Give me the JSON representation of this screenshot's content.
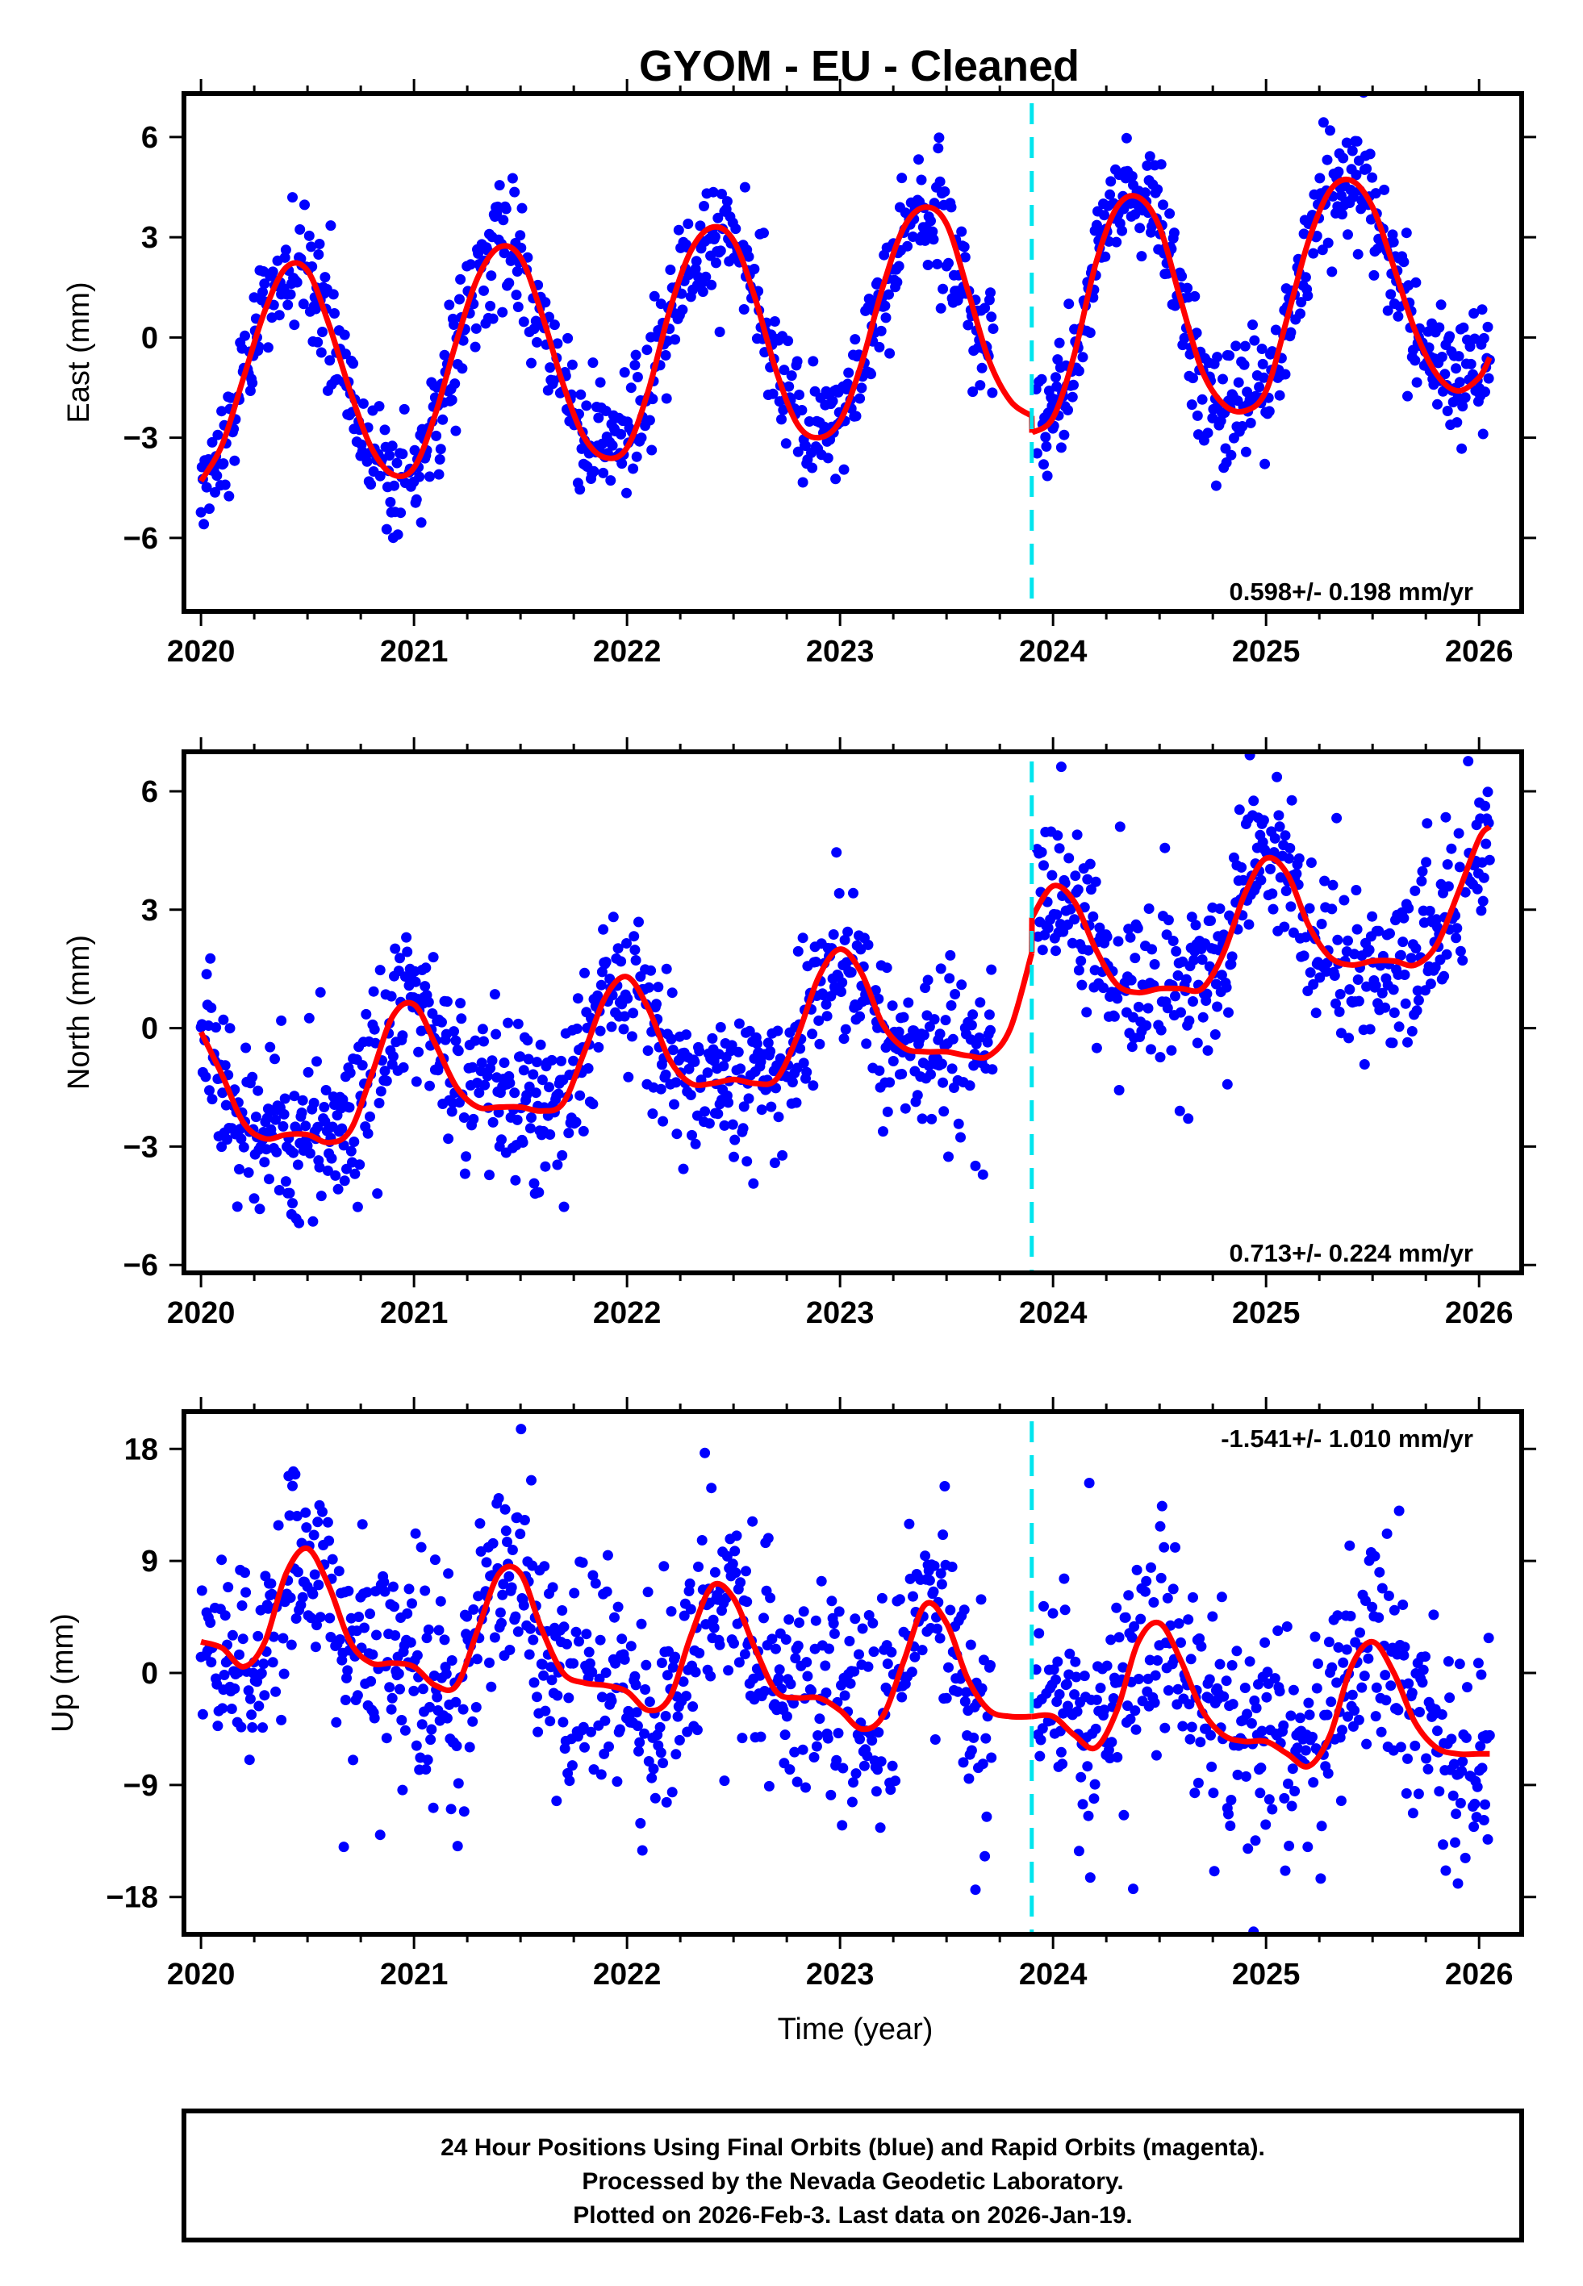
{
  "chart_data": {
    "type": "scatter",
    "title": "GYOM  - EU - Cleaned",
    "xlabel": "Time (year)",
    "xlim": [
      2019.92,
      2026.2
    ],
    "x_ticks": [
      2020,
      2021,
      2022,
      2023,
      2024,
      2025,
      2026
    ],
    "x_tick_labels": [
      "2020",
      "2021",
      "2022",
      "2023",
      "2024",
      "2025",
      "2026"
    ],
    "equipment_change_epoch": 2023.9,
    "data_gaps": [
      [
        2023.72,
        2023.92
      ]
    ],
    "last_data_epoch": 2026.05,
    "point_color": "#0000ff",
    "model_color": "#ff0000",
    "break_line_color": "#00e5ee",
    "grid": false,
    "panels": [
      {
        "name": "East",
        "ylabel": "East (mm)",
        "ylim": [
          -8.2,
          7.3
        ],
        "y_ticks": [
          -6,
          -3,
          0,
          3,
          6
        ],
        "y_tick_labels": [
          "−6",
          "−3",
          "0",
          "3",
          "6"
        ],
        "rate_text": "0.598+/- 0.198 mm/yr",
        "rate_position": "bottom-right",
        "noise_sd_mm": 0.9,
        "model_curve": {
          "x": [
            2020.0,
            2020.1,
            2020.2,
            2020.3,
            2020.4,
            2020.5,
            2020.6,
            2020.7,
            2020.8,
            2020.9,
            2021.0,
            2021.1,
            2021.2,
            2021.3,
            2021.4,
            2021.5,
            2021.6,
            2021.7,
            2021.8,
            2021.9,
            2022.0,
            2022.1,
            2022.2,
            2022.3,
            2022.4,
            2022.5,
            2022.6,
            2022.7,
            2022.8,
            2022.9,
            2023.0,
            2023.1,
            2023.2,
            2023.3,
            2023.4,
            2023.5,
            2023.6,
            2023.7,
            2023.8,
            2023.9,
            2023.901,
            2024.0,
            2024.1,
            2024.2,
            2024.3,
            2024.4,
            2024.5,
            2024.6,
            2024.7,
            2024.8,
            2024.9,
            2025.0,
            2025.1,
            2025.2,
            2025.3,
            2025.4,
            2025.5,
            2025.6,
            2025.7,
            2025.8,
            2025.9,
            2026.0,
            2026.05
          ],
          "y": [
            -4.3,
            -3.2,
            -1.2,
            0.8,
            2.1,
            2.0,
            0.4,
            -1.6,
            -3.3,
            -4.1,
            -3.9,
            -2.3,
            -0.1,
            1.8,
            2.7,
            2.4,
            0.7,
            -1.4,
            -3.0,
            -3.6,
            -3.3,
            -1.6,
            0.8,
            2.6,
            3.3,
            2.9,
            1.2,
            -1.0,
            -2.6,
            -3.0,
            -2.5,
            -0.8,
            1.5,
            3.3,
            3.9,
            3.4,
            1.4,
            -0.7,
            -1.9,
            -2.35,
            -2.85,
            -2.4,
            -0.5,
            2.2,
            3.9,
            4.2,
            3.3,
            1.1,
            -1.0,
            -2.0,
            -2.2,
            -1.6,
            0.6,
            2.9,
            4.4,
            4.7,
            3.9,
            2.1,
            0.2,
            -1.1,
            -1.6,
            -1.2,
            -0.6
          ]
        }
      },
      {
        "name": "North",
        "ylabel": "North (mm)",
        "ylim": [
          -6.2,
          7.0
        ],
        "y_ticks": [
          -6,
          -3,
          0,
          3,
          6
        ],
        "y_tick_labels": [
          "−6",
          "−3",
          "0",
          "3",
          "6"
        ],
        "rate_text": "0.713+/- 0.224 mm/yr",
        "rate_position": "bottom-right",
        "noise_sd_mm": 1.0,
        "model_curve": {
          "x": [
            2020.0,
            2020.1,
            2020.2,
            2020.3,
            2020.4,
            2020.5,
            2020.6,
            2020.7,
            2020.8,
            2020.9,
            2021.0,
            2021.1,
            2021.2,
            2021.3,
            2021.4,
            2021.5,
            2021.6,
            2021.7,
            2021.8,
            2021.9,
            2022.0,
            2022.1,
            2022.2,
            2022.3,
            2022.4,
            2022.5,
            2022.6,
            2022.7,
            2022.8,
            2022.9,
            2023.0,
            2023.1,
            2023.2,
            2023.3,
            2023.4,
            2023.5,
            2023.6,
            2023.7,
            2023.8,
            2023.9,
            2023.901,
            2024.0,
            2024.1,
            2024.2,
            2024.3,
            2024.4,
            2024.5,
            2024.6,
            2024.7,
            2024.8,
            2024.9,
            2025.0,
            2025.1,
            2025.2,
            2025.3,
            2025.4,
            2025.5,
            2025.6,
            2025.7,
            2025.8,
            2025.9,
            2026.0,
            2026.05
          ],
          "y": [
            -0.1,
            -1.2,
            -2.4,
            -2.8,
            -2.7,
            -2.7,
            -2.9,
            -2.6,
            -1.2,
            0.3,
            0.6,
            -0.4,
            -1.5,
            -2.0,
            -2.0,
            -2.0,
            -2.1,
            -1.9,
            -0.6,
            0.8,
            1.3,
            0.5,
            -0.8,
            -1.4,
            -1.4,
            -1.3,
            -1.4,
            -1.3,
            -0.2,
            1.3,
            2.0,
            1.4,
            0.1,
            -0.5,
            -0.6,
            -0.6,
            -0.7,
            -0.7,
            0.0,
            1.9,
            2.8,
            3.6,
            3.2,
            2.0,
            1.1,
            0.9,
            1.0,
            1.0,
            1.0,
            1.9,
            3.4,
            4.3,
            3.9,
            2.6,
            1.8,
            1.6,
            1.7,
            1.7,
            1.6,
            2.1,
            3.4,
            4.8,
            5.1
          ]
        }
      },
      {
        "name": "Up",
        "ylabel": "Up (mm)",
        "ylim": [
          -21,
          21
        ],
        "y_ticks": [
          -18,
          -9,
          0,
          9,
          18
        ],
        "y_tick_labels": [
          "−18",
          "−9",
          "0",
          "9",
          "18"
        ],
        "rate_text": "-1.541+/- 1.010 mm/yr",
        "rate_position": "top-right",
        "noise_sd_mm": 4.2,
        "model_curve": {
          "x": [
            2020.0,
            2020.1,
            2020.2,
            2020.3,
            2020.4,
            2020.5,
            2020.6,
            2020.7,
            2020.8,
            2020.9,
            2021.0,
            2021.1,
            2021.2,
            2021.3,
            2021.4,
            2021.5,
            2021.6,
            2021.7,
            2021.8,
            2021.9,
            2022.0,
            2022.1,
            2022.2,
            2022.3,
            2022.4,
            2022.5,
            2022.6,
            2022.7,
            2022.8,
            2022.9,
            2023.0,
            2023.1,
            2023.2,
            2023.3,
            2023.4,
            2023.5,
            2023.6,
            2023.7,
            2023.8,
            2023.9,
            2023.901,
            2024.0,
            2024.1,
            2024.2,
            2024.3,
            2024.4,
            2024.5,
            2024.6,
            2024.7,
            2024.8,
            2024.9,
            2025.0,
            2025.1,
            2025.2,
            2025.3,
            2025.4,
            2025.5,
            2025.6,
            2025.7,
            2025.8,
            2025.9,
            2026.0,
            2026.05
          ],
          "y": [
            2.5,
            2.0,
            0.5,
            2.5,
            8.0,
            10.0,
            7.0,
            2.5,
            0.8,
            0.8,
            0.5,
            -1.0,
            -1.0,
            3.5,
            8.0,
            8.0,
            3.5,
            0.0,
            -0.8,
            -1.0,
            -1.5,
            -3.0,
            -2.0,
            3.0,
            7.0,
            6.0,
            2.0,
            -1.5,
            -2.0,
            -2.0,
            -3.0,
            -4.5,
            -3.5,
            1.0,
            5.5,
            4.0,
            -0.5,
            -3.0,
            -3.5,
            -3.5,
            -3.5,
            -3.5,
            -5.0,
            -6.0,
            -3.0,
            2.5,
            4.0,
            1.0,
            -3.0,
            -5.0,
            -5.5,
            -5.5,
            -6.5,
            -7.5,
            -5.0,
            0.5,
            2.5,
            0.0,
            -4.0,
            -6.0,
            -6.5,
            -6.5,
            -6.5
          ]
        }
      }
    ]
  },
  "footer": {
    "line1": "24 Hour Positions Using Final Orbits (blue) and Rapid Orbits (magenta).",
    "line2": "Processed by the Nevada Geodetic Laboratory.",
    "line3": "Plotted on 2026-Feb-3. Last data on 2026-Jan-19."
  }
}
